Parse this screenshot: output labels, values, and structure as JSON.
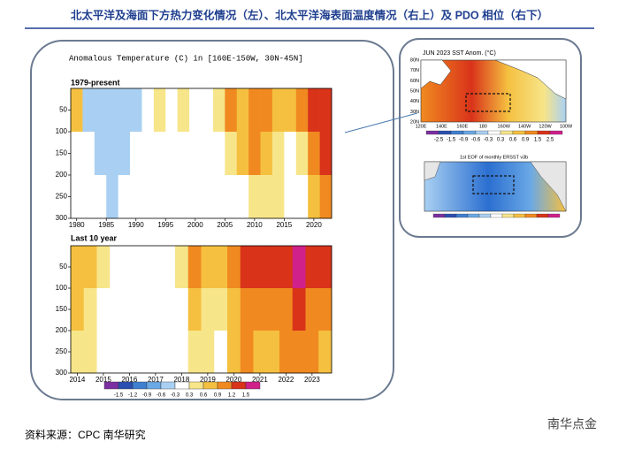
{
  "title": "北太平洋及海面下方热力变化情况（左）、北太平洋海表面温度情况（右上）及 PDO 相位（右下）",
  "source": "资料来源：CPC 南华研究",
  "watermark": "南华点金",
  "colorbar": {
    "levels": [
      -1.5,
      -1.2,
      -0.9,
      -0.6,
      -0.3,
      0.3,
      0.6,
      0.9,
      1.2,
      1.5
    ],
    "colors": [
      "#7b2fa0",
      "#2b4fb0",
      "#3f7fd0",
      "#6aa8e6",
      "#a9d0f2",
      "#ffffff",
      "#f7e58a",
      "#f5c040",
      "#f08a20",
      "#d9331a",
      "#d0208a"
    ]
  },
  "chart_data": [
    {
      "type": "heatmap",
      "title": "Anomalous Temperature (C) in [160E-150W, 30N-45N]",
      "subtitle": "1979-present",
      "xbins": [
        1979,
        1981,
        1983,
        1985,
        1987,
        1989,
        1991,
        1993,
        1995,
        1997,
        1999,
        2001,
        2003,
        2005,
        2007,
        2009,
        2011,
        2013,
        2015,
        2017,
        2019,
        2021,
        2023
      ],
      "ybins": [
        0,
        100,
        200,
        300
      ],
      "z": [
        [
          0.6,
          -0.6,
          -0.6,
          -0.6,
          -0.6,
          -0.6,
          -0.3,
          0.3,
          0,
          0.3,
          0,
          0,
          0.3,
          0.9,
          0.6,
          0.9,
          0.9,
          0.6,
          0.6,
          0.9,
          1.2,
          1.2
        ],
        [
          0,
          -0.3,
          -0.6,
          -0.6,
          -0.6,
          -0.3,
          0,
          0,
          0,
          0,
          0,
          0,
          0,
          0.3,
          0.6,
          0.9,
          0.6,
          0.3,
          0,
          0.3,
          0.9,
          1.2
        ],
        [
          0,
          0,
          0,
          -0.6,
          -0.3,
          0,
          0,
          0,
          0,
          0,
          0,
          0,
          0,
          0,
          0,
          0.3,
          0.3,
          0.3,
          0,
          0,
          0.6,
          0.9
        ]
      ],
      "xlim": [
        1979,
        2023
      ],
      "xticks": [
        1980,
        1985,
        1990,
        1995,
        2000,
        2005,
        2010,
        2015,
        2020
      ],
      "ylim": [
        0,
        300
      ],
      "y_inverted": true,
      "yticks": [
        50,
        100,
        150,
        200,
        250,
        300
      ]
    },
    {
      "type": "heatmap",
      "subtitle": "Last 10 year",
      "xbins": [
        2013.75,
        2014.25,
        2014.75,
        2015.25,
        2015.75,
        2016.25,
        2016.75,
        2017.25,
        2017.75,
        2018.25,
        2018.75,
        2019.25,
        2019.75,
        2020.25,
        2020.75,
        2021.25,
        2021.75,
        2022.25,
        2022.75,
        2023.25,
        2023.75
      ],
      "ybins": [
        0,
        100,
        200,
        300
      ],
      "z": [
        [
          0.6,
          0.6,
          0.3,
          0,
          0,
          0,
          -0.3,
          0,
          0.3,
          0.9,
          0.6,
          0.6,
          0.9,
          1.2,
          1.2,
          1.2,
          1.2,
          1.5,
          1.2,
          1.2
        ],
        [
          0.6,
          0.3,
          0,
          0,
          0,
          0,
          -0.3,
          0,
          0,
          0.6,
          0.3,
          0.3,
          0.6,
          0.9,
          0.9,
          0.9,
          0.9,
          1.2,
          0.9,
          0.9
        ],
        [
          0.3,
          0.3,
          0,
          0,
          0,
          0,
          0,
          0,
          0,
          0.3,
          0.3,
          0,
          0.6,
          0.9,
          0.6,
          0.6,
          0.9,
          0.9,
          0.9,
          0.6
        ]
      ],
      "xlim": [
        2013.75,
        2023.75
      ],
      "xticks": [
        2014,
        2015,
        2016,
        2017,
        2018,
        2019,
        2020,
        2021,
        2022,
        2023
      ],
      "ylim": [
        0,
        300
      ],
      "y_inverted": true,
      "yticks": [
        50,
        100,
        150,
        200,
        250,
        300
      ],
      "show_colorbar": true
    }
  ],
  "sst_map": {
    "title": "JUN 2023 SST Anom. (°C)",
    "lat_labels": [
      "80N",
      "70N",
      "60N",
      "50N",
      "40N",
      "30N",
      "20N"
    ],
    "lon_labels": [
      "120E",
      "140E",
      "160E",
      "180",
      "160W",
      "140W",
      "120W",
      "100W"
    ],
    "colorbar_labels": [
      -2.5,
      -1.5,
      -0.9,
      -0.6,
      -0.3,
      0.3,
      0.6,
      0.9,
      1.5,
      2.5
    ]
  },
  "eof_map": {
    "title": "1st EOF of monthly ERSST v3b"
  }
}
